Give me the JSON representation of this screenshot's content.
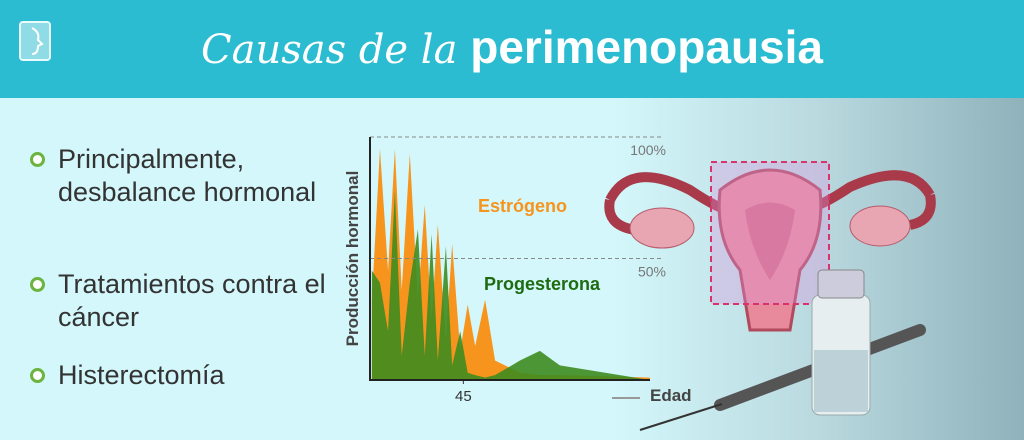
{
  "header": {
    "title_regular": "Causas de la",
    "title_bold": "perimenopausia"
  },
  "bullets": [
    "Principalmente, desbalance hormonal",
    "Tratamientos contra el cáncer",
    "Histerectomía"
  ],
  "chart_data": {
    "type": "area",
    "ylabel": "Producción hormonal",
    "xlabel": "Edad",
    "xlim": [
      30,
      75
    ],
    "xticks": [
      45
    ],
    "ylim": [
      0,
      100
    ],
    "yticks": [
      {
        "value": 100,
        "label": "100%"
      },
      {
        "value": 50,
        "label": "50%"
      }
    ],
    "x": [
      30.3,
      31.6,
      32.9,
      34.0,
      35.1,
      36.4,
      37.7,
      38.8,
      39.9,
      40.9,
      42.2,
      43.2,
      44.5,
      45.7,
      46.9,
      48.5,
      50.1,
      54.1,
      57.3,
      60.5,
      75
    ],
    "series": [
      {
        "name": "Estrógeno",
        "color": "#f7941d",
        "values": [
          33,
          95,
          45,
          95,
          37,
          93,
          33,
          72,
          25,
          64,
          16,
          56,
          12,
          31,
          14,
          33,
          8,
          3,
          2,
          2,
          1
        ]
      },
      {
        "name": "Progesterona",
        "color": "#3d8b1f",
        "values": [
          45,
          40,
          20,
          78,
          10,
          40,
          62,
          10,
          60,
          8,
          55,
          6,
          20,
          3,
          2,
          1,
          2,
          8,
          12,
          6,
          0
        ]
      }
    ]
  }
}
